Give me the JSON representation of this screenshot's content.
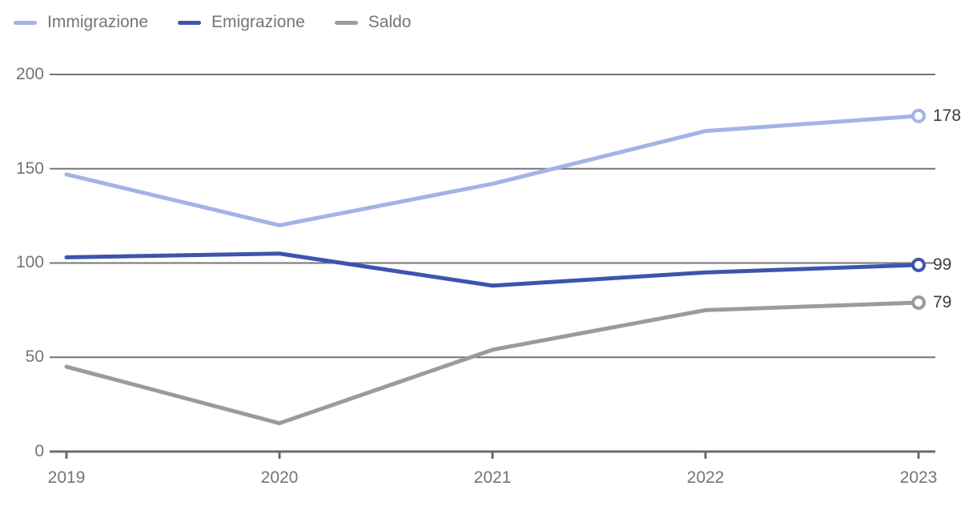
{
  "chart_data": {
    "type": "line",
    "x": [
      2019,
      2020,
      2021,
      2022,
      2023
    ],
    "xticklabels": [
      "2019",
      "2020",
      "2021",
      "2022",
      "2023"
    ],
    "series": [
      {
        "name": "Immigrazione",
        "color": "#a3b3e6",
        "values": [
          147,
          120,
          142,
          170,
          178
        ],
        "end_label": "178"
      },
      {
        "name": "Emigrazione",
        "color": "#3e54ac",
        "values": [
          103,
          105,
          88,
          95,
          99
        ],
        "end_label": "99"
      },
      {
        "name": "Saldo",
        "color": "#9b9b9b",
        "values": [
          45,
          15,
          54,
          75,
          79
        ],
        "end_label": "79"
      }
    ],
    "title": "",
    "xlabel": "",
    "ylabel": "",
    "ylim": [
      0,
      200
    ],
    "yticks": [
      0,
      50,
      100,
      150,
      200
    ],
    "grid": true,
    "legend_position": "top-left",
    "marker": "open-circle-at-last-point",
    "colors": {
      "gridline": "#767676",
      "axis": "#6b6b6b",
      "tick_labels": "#757575",
      "value_labels": "#3c3c3c",
      "background": "#ffffff"
    }
  }
}
